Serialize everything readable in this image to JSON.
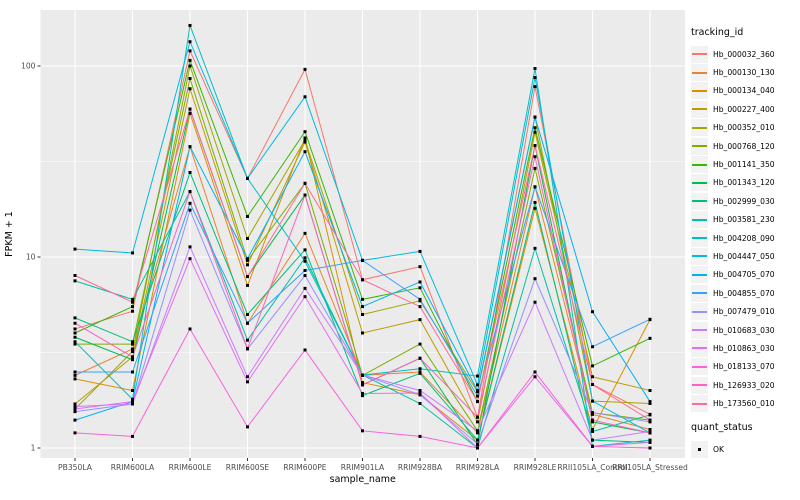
{
  "chart_data": {
    "type": "line",
    "title": "",
    "xlabel": "sample_name",
    "ylabel": "FPKM + 1",
    "y_scale": "log10",
    "y_ticks": [
      1,
      10,
      100
    ],
    "ylim": [
      0.88,
      196
    ],
    "grid": "white major and minor gridlines on gray panel",
    "legend_position": "right",
    "panel_background": "#EBEBEB",
    "marker": "black-square",
    "x_categories": [
      "PB350LA",
      "RRIM600LA",
      "RRIM600LE",
      "RRIM600SE",
      "RRIM600PE",
      "RRIM901LA",
      "RRIM928BA",
      "RRIM928LA",
      "RRIM928LE",
      "RRII105LA_Control",
      "RRII105LA_Stressed"
    ],
    "series": [
      {
        "name": "Hb_000032_360",
        "color": "#F8766D",
        "values": [
          4.2,
          5.2,
          120,
          25.8,
          96,
          7.6,
          8.9,
          1.45,
          78,
          2.15,
          1.5
        ]
      },
      {
        "name": "Hb_000130_130",
        "color": "#EA8331",
        "values": [
          2.4,
          3.3,
          37.8,
          4.5,
          13.3,
          2.4,
          2.5,
          1.2,
          23.3,
          1.5,
          1.25
        ]
      },
      {
        "name": "Hb_000134_040",
        "color": "#D89000",
        "values": [
          2.3,
          2.0,
          56.5,
          7.1,
          42,
          2.2,
          1.9,
          1.1,
          18,
          1.25,
          4.7
        ]
      },
      {
        "name": "Hb_000227_400",
        "color": "#C09B00",
        "values": [
          1.7,
          3.0,
          76,
          9.1,
          40,
          4.0,
          4.7,
          1.37,
          45,
          2.36,
          2.0
        ]
      },
      {
        "name": "Hb_000352_010",
        "color": "#A3A500",
        "values": [
          1.6,
          3.2,
          100,
          12.5,
          41,
          5.0,
          5.9,
          1.97,
          54,
          1.76,
          1.71
        ]
      },
      {
        "name": "Hb_000768_120",
        "color": "#7CAE00",
        "values": [
          3.5,
          3.5,
          86,
          9.6,
          24.3,
          2.4,
          3.5,
          1.23,
          29.1,
          1.53,
          1.4
        ]
      },
      {
        "name": "Hb_001141_350",
        "color": "#39B600",
        "values": [
          4.0,
          5.5,
          107,
          16.3,
          45.3,
          6.0,
          6.9,
          1.75,
          47.5,
          2.69,
          3.75
        ]
      },
      {
        "name": "Hb_001343_120",
        "color": "#00BB4E",
        "values": [
          3.8,
          2.9,
          59.5,
          7.9,
          21.1,
          2.14,
          2.95,
          1.04,
          38.3,
          1.37,
          1.2
        ]
      },
      {
        "name": "Hb_002999_030",
        "color": "#00BF7D",
        "values": [
          4.8,
          3.6,
          27.7,
          5.0,
          10.9,
          1.88,
          2.46,
          1.1,
          19.3,
          1.1,
          1.07
        ]
      },
      {
        "name": "Hb_003581_230",
        "color": "#00C1A3",
        "values": [
          7.5,
          6.0,
          22,
          3.67,
          9.9,
          2.41,
          1.71,
          1.0,
          11.1,
          1.22,
          1.49
        ]
      },
      {
        "name": "Hb_004208_090",
        "color": "#00BFC4",
        "values": [
          3.6,
          1.8,
          163,
          25.8,
          9.5,
          2.41,
          2.6,
          2.38,
          97,
          1.02,
          1.1
        ]
      },
      {
        "name": "Hb_004447_050",
        "color": "#00BAE0",
        "values": [
          11.0,
          10.5,
          134,
          25.8,
          69,
          9.6,
          10.7,
          2.14,
          87,
          1.76,
          1.2
        ]
      },
      {
        "name": "Hb_004705_070",
        "color": "#00B0F6",
        "values": [
          1.4,
          1.75,
          37.8,
          9.8,
          35.6,
          5.5,
          7.4,
          2.0,
          54,
          5.17,
          1.75
        ]
      },
      {
        "name": "Hb_004855_070",
        "color": "#35A2FF",
        "values": [
          2.5,
          2.5,
          19.1,
          4.5,
          8.5,
          9.6,
          6.0,
          1.87,
          23.3,
          3.39,
          4.72
        ]
      },
      {
        "name": "Hb_007479_010",
        "color": "#9590FF",
        "values": [
          1.55,
          1.7,
          17.6,
          3.3,
          8.0,
          2.41,
          1.9,
          1.05,
          7.7,
          1.53,
          1.37
        ]
      },
      {
        "name": "Hb_010683_030",
        "color": "#C77CFF",
        "values": [
          1.65,
          1.7,
          11.3,
          2.36,
          6.85,
          2.41,
          2.0,
          1.23,
          5.8,
          1.1,
          1.22
        ]
      },
      {
        "name": "Hb_010863_030",
        "color": "#E76BF3",
        "values": [
          1.6,
          1.75,
          9.8,
          2.22,
          6.2,
          1.93,
          1.94,
          1.0,
          2.36,
          1.02,
          1.07
        ]
      },
      {
        "name": "Hb_018133_070",
        "color": "#FA62DB",
        "values": [
          1.2,
          1.15,
          4.2,
          1.29,
          3.26,
          1.23,
          1.15,
          1.0,
          2.5,
          1.02,
          1.0
        ]
      },
      {
        "name": "Hb_126933_020",
        "color": "#FF62BC",
        "values": [
          4.5,
          3.0,
          22,
          3.32,
          21.1,
          2.14,
          2.95,
          1.45,
          33.5,
          1.4,
          1.2
        ]
      },
      {
        "name": "Hb_173560_010",
        "color": "#FF6A98",
        "values": [
          8.0,
          5.8,
          59.5,
          7.9,
          24.3,
          7.6,
          5.5,
          1.75,
          38.3,
          2.15,
          1.4
        ]
      }
    ]
  },
  "legend": {
    "tracking_title": "tracking_id",
    "quant_title": "quant_status",
    "quant_items": [
      {
        "label": "OK",
        "marker": "black-square"
      }
    ]
  },
  "axes": {
    "x_label": "sample_name",
    "y_label": "FPKM + 1"
  },
  "colors": {
    "panel": "#EBEBEB",
    "gridline": "#FFFFFF",
    "tick_text": "#4D4D4D",
    "tick_mark": "#333333",
    "marker": "#000000"
  }
}
